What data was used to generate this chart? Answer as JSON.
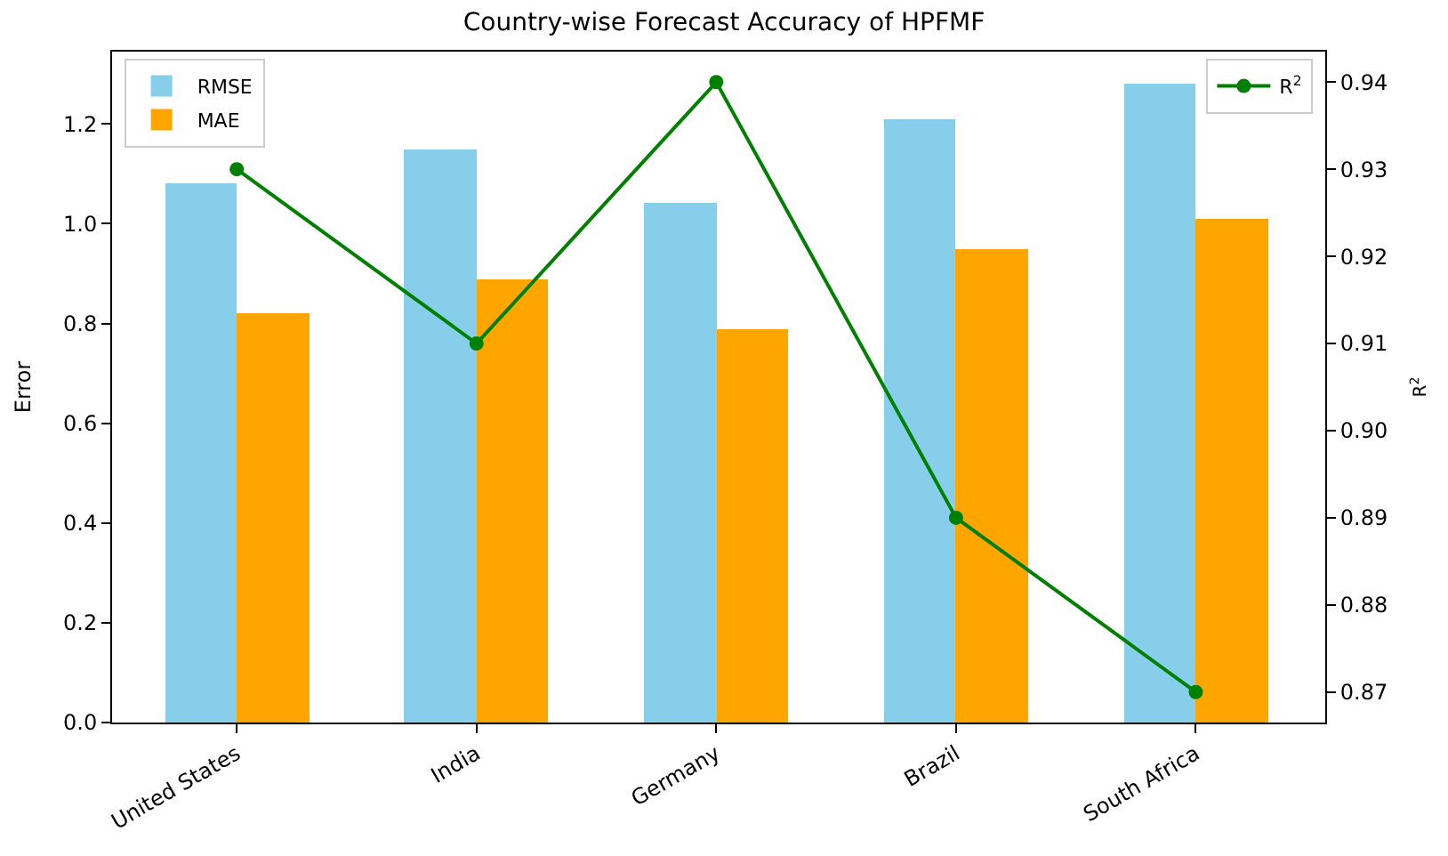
{
  "chart_data": {
    "type": "bar",
    "title": "Country-wise Forecast Accuracy of HPFMF",
    "ylabel": "Error",
    "y2label": "R$^{2}$",
    "categories": [
      "United States",
      "India",
      "Germany",
      "Brazil",
      "South Africa"
    ],
    "series": [
      {
        "name": "RMSE",
        "color": "#87ceeb",
        "values": [
          1.08,
          1.15,
          1.04,
          1.21,
          1.28
        ]
      },
      {
        "name": "MAE",
        "color": "#ffa500",
        "values": [
          0.82,
          0.89,
          0.79,
          0.95,
          1.01
        ]
      },
      {
        "name": "R$^{2}$",
        "type": "line",
        "axis": "y2",
        "color": "#008000",
        "marker": "circle",
        "values": [
          0.93,
          0.91,
          0.94,
          0.89,
          0.87
        ]
      }
    ],
    "ylim": [
      0,
      1.345
    ],
    "yticks": [
      {
        "value": 0,
        "label": "0.0"
      },
      {
        "value": 0.2,
        "label": "0.2"
      },
      {
        "value": 0.4,
        "label": "0.4"
      },
      {
        "value": 0.6,
        "label": "0.6"
      },
      {
        "value": 0.8,
        "label": "0.8"
      },
      {
        "value": 1.0,
        "label": "1.0"
      },
      {
        "value": 1.2,
        "label": "1.2"
      }
    ],
    "y2lim": [
      0.8665,
      0.9435
    ],
    "y2ticks": [
      {
        "value": 0.87,
        "label": "0.87"
      },
      {
        "value": 0.88,
        "label": "0.88"
      },
      {
        "value": 0.89,
        "label": "0.89"
      },
      {
        "value": 0.9,
        "label": "0.90"
      },
      {
        "value": 0.91,
        "label": "0.91"
      },
      {
        "value": 0.92,
        "label": "0.92"
      },
      {
        "value": 0.93,
        "label": "0.93"
      },
      {
        "value": 0.94,
        "label": "0.94"
      }
    ],
    "legend": "top left"
  }
}
